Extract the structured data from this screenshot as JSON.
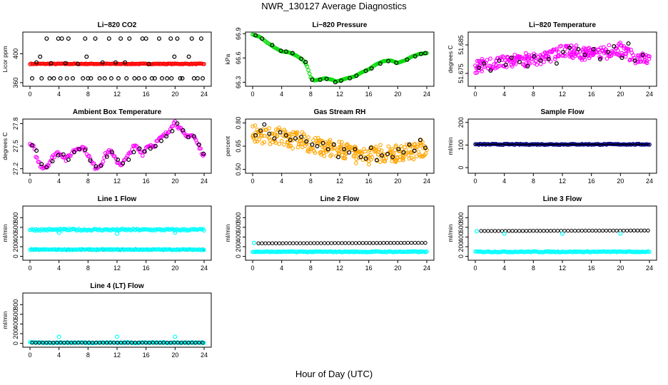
{
  "page": {
    "title": "NWR_130127  Average Diagnostics",
    "xlabel": "Hour of Day (UTC)"
  },
  "colors": {
    "co2": "#ff0000",
    "pressure": "#00dd00",
    "temperature": "#ff00ff",
    "rh": "#ffa500",
    "flow": "#000080",
    "cyan": "#00ffff",
    "avg": "#000000"
  },
  "chart_data": [
    {
      "id": "co2",
      "type": "scatter",
      "title": "Li−820 CO2",
      "ylabel": "Licor ppm",
      "xlim": [
        0,
        24
      ],
      "ylim": [
        355,
        430
      ],
      "xticks": [
        "0",
        "4",
        "8",
        "12",
        "16",
        "20",
        "24"
      ],
      "yticks": [
        "360",
        "400"
      ],
      "series": [
        {
          "color": "red",
          "style": "band",
          "x": [
            0,
            24
          ],
          "y": [
            385.5,
            386.5
          ]
        },
        {
          "color": "black",
          "style": "markers",
          "x": [
            0.3,
            0.9,
            1.4,
            1.6,
            2.3,
            2.7,
            2.9,
            3.3,
            3.9,
            4.2,
            4.4,
            4.9,
            5.1,
            5.3,
            5.9,
            6.6,
            7.3,
            7.6,
            7.8,
            8.0,
            8.4,
            9.0,
            9.6,
            10.0,
            10.3,
            10.9,
            11.2,
            11.8,
            12.2,
            12.5,
            13.1,
            13.3,
            13.7,
            14.4,
            15.0,
            15.5,
            15.8,
            16.0,
            16.4,
            16.8,
            17.2,
            17.8,
            18.2,
            18.9,
            19.4,
            19.5,
            19.9,
            20.3,
            20.7,
            21.0,
            21.9,
            22.3,
            22.6,
            23.1,
            23.6,
            23.8
          ],
          "y": [
            366,
            388,
            396,
            366,
            421,
            366,
            387,
            366,
            421,
            366,
            421,
            387,
            366,
            421,
            366,
            386,
            366,
            421,
            396,
            366,
            366,
            421,
            366,
            388,
            366,
            421,
            366,
            388,
            366,
            421,
            388,
            366,
            421,
            366,
            366,
            421,
            366,
            421,
            386,
            366,
            366,
            421,
            366,
            366,
            421,
            366,
            396,
            421,
            366,
            366,
            396,
            421,
            366,
            366,
            421,
            366
          ]
        }
      ]
    },
    {
      "id": "pressure",
      "type": "scatter",
      "title": "Li−820 Pressure",
      "ylabel": "kPa",
      "xlim": [
        0,
        24
      ],
      "ylim": [
        66.25,
        66.92
      ],
      "xticks": [
        "0",
        "4",
        "8",
        "12",
        "16",
        "20",
        "24"
      ],
      "yticks": [
        "66.3",
        "66.6",
        "66.9"
      ],
      "series": [
        {
          "color": "green",
          "style": "band",
          "x": [
            0,
            1,
            2,
            3,
            4,
            5,
            6,
            7,
            7.5,
            8,
            8.5,
            9,
            10,
            11,
            11.5,
            12,
            13,
            14,
            15,
            16,
            17,
            18,
            19,
            20,
            21,
            22,
            23,
            24
          ],
          "y": [
            66.89,
            66.86,
            66.79,
            66.73,
            66.68,
            66.67,
            66.63,
            66.57,
            66.5,
            66.36,
            66.32,
            66.33,
            66.35,
            66.33,
            66.31,
            66.32,
            66.35,
            66.37,
            66.42,
            66.46,
            66.52,
            66.56,
            66.57,
            66.54,
            66.57,
            66.62,
            66.65,
            66.66
          ]
        },
        {
          "color": "black",
          "style": "markers",
          "x": [
            0.4,
            1.3,
            2.7,
            3.9,
            4.6,
            5.5,
            6.7,
            7.3,
            8.2,
            9.3,
            10.2,
            11.4,
            12.2,
            13.4,
            14.3,
            15.6,
            16.4,
            17.6,
            18.7,
            19.8,
            21.3,
            22.4,
            23.2,
            23.8
          ],
          "y": [
            66.88,
            66.84,
            66.76,
            66.69,
            66.68,
            66.66,
            66.59,
            66.55,
            66.33,
            66.33,
            66.34,
            66.3,
            66.32,
            66.35,
            66.38,
            66.44,
            66.47,
            66.53,
            66.56,
            66.54,
            66.58,
            66.62,
            66.65,
            66.66
          ]
        }
      ]
    },
    {
      "id": "li820temp",
      "type": "scatter",
      "title": "Li−820 Temperature",
      "ylabel": "degrees C",
      "xlim": [
        0,
        24
      ],
      "ylim": [
        51.6705,
        51.6895
      ],
      "xticks": [
        "0",
        "4",
        "8",
        "12",
        "16",
        "20",
        "24"
      ],
      "yticks": [
        "51.675",
        "51.685"
      ],
      "series": [
        {
          "color": "magenta",
          "style": "cloud",
          "x": [
            0,
            2,
            4,
            6,
            8,
            10,
            12,
            14,
            16,
            18,
            20,
            22,
            24
          ],
          "y": [
            51.677,
            51.6785,
            51.679,
            51.68,
            51.6795,
            51.681,
            51.683,
            51.6825,
            51.6815,
            51.6825,
            51.6835,
            51.6805,
            51.6795
          ],
          "spread": 0.004
        },
        {
          "color": "black",
          "style": "markers",
          "x": [
            0.5,
            1.2,
            2.1,
            3.3,
            4.2,
            5.0,
            6.1,
            7.2,
            8.1,
            9.0,
            10.1,
            11.2,
            12.1,
            13.0,
            14.2,
            15.1,
            16.3,
            17.2,
            18.3,
            19.1,
            20.2,
            21.1,
            22.0,
            23.1
          ],
          "y": [
            51.677,
            51.6785,
            51.676,
            51.6795,
            51.678,
            51.6805,
            51.679,
            51.6775,
            51.681,
            51.6795,
            51.68,
            51.6785,
            51.6825,
            51.684,
            51.6835,
            51.6815,
            51.6835,
            51.68,
            51.6825,
            51.6845,
            51.6805,
            51.6855,
            51.6795,
            51.6815
          ]
        }
      ]
    },
    {
      "id": "boxtemp",
      "type": "scatter",
      "title": "Ambient Box Temperature",
      "ylabel": "degrees C",
      "xlim": [
        0,
        24
      ],
      "ylim": [
        27.14,
        27.86
      ],
      "xticks": [
        "0",
        "4",
        "8",
        "12",
        "16",
        "20",
        "24"
      ],
      "yticks": [
        "27.2",
        "27.5",
        "27.8"
      ],
      "series": [
        {
          "color": "magenta",
          "style": "band",
          "x": [
            0,
            0.5,
            1,
            1.5,
            2,
            2.5,
            3,
            3.5,
            4,
            4.5,
            5,
            5.5,
            6,
            6.5,
            7,
            7.5,
            8,
            8.5,
            9,
            9.5,
            10,
            10.5,
            11,
            11.5,
            12,
            12.5,
            13,
            13.5,
            14,
            14.5,
            15,
            15.5,
            16,
            16.5,
            17,
            17.5,
            18,
            18.5,
            19,
            19.5,
            20,
            20.5,
            21,
            21.5,
            22,
            22.5,
            23,
            23.5,
            24
          ],
          "y": [
            27.52,
            27.48,
            27.32,
            27.24,
            27.22,
            27.26,
            27.33,
            27.4,
            27.42,
            27.38,
            27.32,
            27.38,
            27.44,
            27.47,
            27.49,
            27.47,
            27.39,
            27.28,
            27.22,
            27.23,
            27.3,
            27.4,
            27.45,
            27.36,
            27.3,
            27.26,
            27.3,
            27.36,
            27.46,
            27.5,
            27.45,
            27.4,
            27.48,
            27.52,
            27.5,
            27.56,
            27.6,
            27.64,
            27.68,
            27.78,
            27.82,
            27.76,
            27.68,
            27.62,
            27.65,
            27.64,
            27.55,
            27.45,
            27.38
          ],
          "spread": 0.06
        },
        {
          "color": "black",
          "style": "markers",
          "x": [
            0.3,
            0.9,
            1.6,
            2.3,
            3.1,
            3.9,
            4.6,
            5.3,
            6.1,
            6.8,
            7.6,
            8.3,
            9.1,
            9.8,
            10.6,
            11.3,
            12.1,
            12.8,
            13.6,
            14.3,
            15.1,
            15.8,
            16.6,
            17.3,
            18.1,
            18.8,
            19.6,
            20.3,
            21.1,
            21.8,
            22.6,
            23.3,
            23.9
          ],
          "y": [
            27.51,
            27.44,
            27.26,
            27.22,
            27.3,
            27.38,
            27.39,
            27.32,
            27.42,
            27.46,
            27.45,
            27.31,
            27.23,
            27.24,
            27.36,
            27.42,
            27.32,
            27.27,
            27.32,
            27.42,
            27.47,
            27.43,
            27.47,
            27.5,
            27.57,
            27.63,
            27.7,
            27.8,
            27.71,
            27.62,
            27.63,
            27.52,
            27.4
          ]
        }
      ]
    },
    {
      "id": "rh",
      "type": "scatter",
      "title": "Gas Stream RH",
      "ylabel": "percent",
      "xlim": [
        0,
        24
      ],
      "ylim": [
        0.475,
        0.825
      ],
      "xticks": [
        "0",
        "4",
        "8",
        "12",
        "16",
        "20",
        "24"
      ],
      "yticks": [
        "0.50",
        "0.65",
        "0.80"
      ],
      "series": [
        {
          "color": "orange",
          "style": "cloud",
          "x": [
            0,
            2,
            4,
            6,
            8,
            10,
            12,
            14,
            16,
            18,
            20,
            22,
            24
          ],
          "y": [
            0.73,
            0.72,
            0.71,
            0.69,
            0.67,
            0.64,
            0.62,
            0.6,
            0.59,
            0.6,
            0.6,
            0.62,
            0.64
          ],
          "spread": 0.1
        },
        {
          "color": "black",
          "style": "markers",
          "x": [
            0.4,
            1.1,
            1.6,
            2.3,
            3.0,
            3.8,
            4.6,
            5.2,
            5.9,
            6.7,
            7.4,
            8.2,
            8.9,
            9.7,
            10.4,
            11.2,
            11.8,
            12.6,
            13.3,
            14.1,
            14.9,
            15.6,
            16.3,
            17.1,
            17.8,
            18.6,
            19.3,
            20.1,
            20.8,
            21.6,
            22.3,
            23.1,
            23.8
          ],
          "y": [
            0.72,
            0.75,
            0.79,
            0.73,
            0.7,
            0.74,
            0.72,
            0.69,
            0.7,
            0.71,
            0.68,
            0.66,
            0.65,
            0.67,
            0.63,
            0.66,
            0.58,
            0.63,
            0.61,
            0.63,
            0.58,
            0.57,
            0.64,
            0.56,
            0.59,
            0.6,
            0.58,
            0.63,
            0.61,
            0.66,
            0.62,
            0.69,
            0.64
          ]
        }
      ]
    },
    {
      "id": "sampleflow",
      "type": "scatter",
      "title": "Sample Flow",
      "ylabel": "ml/min",
      "xlim": [
        0,
        24
      ],
      "ylim": [
        -25,
        215
      ],
      "xticks": [
        "0",
        "4",
        "8",
        "12",
        "16",
        "20",
        "24"
      ],
      "yticks": [
        "0",
        "100",
        "200"
      ],
      "series": [
        {
          "color": "navy",
          "style": "band",
          "x": [
            0,
            24
          ],
          "y": [
            101,
            105
          ]
        },
        {
          "color": "black",
          "style": "line",
          "x": [
            0,
            24
          ],
          "y": [
            103,
            103
          ]
        }
      ]
    },
    {
      "id": "line1",
      "type": "scatter",
      "title": "Line 1 Flow",
      "ylabel": "ml/min",
      "xlim": [
        0,
        24
      ],
      "ylim": [
        -80,
        1040
      ],
      "xticks": [
        "0",
        "4",
        "8",
        "12",
        "16",
        "20",
        "24"
      ],
      "yticks": [
        "0",
        "200",
        "400",
        "600",
        "800"
      ],
      "series": [
        {
          "color": "cyan",
          "style": "band",
          "x": [
            0,
            24
          ],
          "y": [
            530,
            570
          ]
        },
        {
          "color": "cyan",
          "style": "markers",
          "x": [
            4,
            12,
            20
          ],
          "y": [
            490,
            470,
            490
          ]
        },
        {
          "color": "black",
          "style": "chain",
          "x": [
            0.3,
            23.8
          ],
          "y": [
            140,
            140
          ]
        },
        {
          "color": "cyan",
          "style": "band",
          "x": [
            0,
            24
          ],
          "y": [
            130,
            150
          ]
        }
      ]
    },
    {
      "id": "line2",
      "type": "scatter",
      "title": "Line 2 Flow",
      "ylabel": "ml/min",
      "xlim": [
        0,
        24
      ],
      "ylim": [
        -80,
        1040
      ],
      "xticks": [
        "0",
        "4",
        "8",
        "12",
        "16",
        "20",
        "24"
      ],
      "yticks": [
        "0",
        "200",
        "400",
        "600",
        "800"
      ],
      "series": [
        {
          "color": "black",
          "style": "chain",
          "x": [
            0.8,
            23.8
          ],
          "y": [
            270,
            280
          ]
        },
        {
          "color": "cyan",
          "style": "markers",
          "x": [
            0.2
          ],
          "y": [
            280
          ]
        },
        {
          "color": "cyan",
          "style": "band",
          "x": [
            0,
            24
          ],
          "y": [
            85,
            105
          ]
        }
      ]
    },
    {
      "id": "line3",
      "type": "scatter",
      "title": "Line 3 Flow",
      "ylabel": "ml/min",
      "xlim": [
        0,
        24
      ],
      "ylim": [
        -80,
        1040
      ],
      "xticks": [
        "0",
        "4",
        "8",
        "12",
        "16",
        "20",
        "24"
      ],
      "yticks": [
        "0",
        "200",
        "400",
        "600",
        "800"
      ],
      "series": [
        {
          "color": "black",
          "style": "chain",
          "x": [
            0.8,
            23.8
          ],
          "y": [
            525,
            535
          ]
        },
        {
          "color": "cyan",
          "style": "markers",
          "x": [
            0.2,
            4,
            12,
            20
          ],
          "y": [
            520,
            470,
            470,
            470
          ]
        },
        {
          "color": "cyan",
          "style": "band",
          "x": [
            0,
            24
          ],
          "y": [
            85,
            105
          ]
        }
      ]
    },
    {
      "id": "line4",
      "type": "scatter",
      "title": "Line 4 (LT) Flow",
      "ylabel": "ml/min",
      "xlim": [
        0,
        24
      ],
      "ylim": [
        -80,
        1040
      ],
      "xticks": [
        "0",
        "4",
        "8",
        "12",
        "16",
        "20",
        "24"
      ],
      "yticks": [
        "0",
        "200",
        "400",
        "600",
        "800"
      ],
      "series": [
        {
          "color": "cyan",
          "style": "band",
          "x": [
            0,
            24
          ],
          "y": [
            5,
            25
          ]
        },
        {
          "color": "cyan",
          "style": "markers",
          "x": [
            4,
            12,
            20
          ],
          "y": [
            135,
            135,
            135
          ]
        },
        {
          "color": "black",
          "style": "chain",
          "x": [
            0.3,
            23.8
          ],
          "y": [
            15,
            15
          ]
        }
      ]
    }
  ]
}
